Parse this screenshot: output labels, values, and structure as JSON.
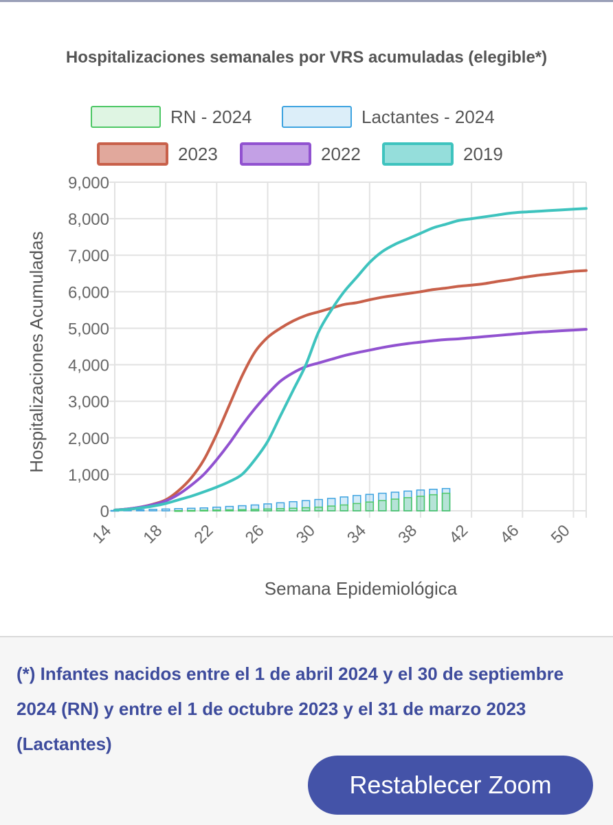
{
  "footnote": "(*) Infantes nacidos entre el 1 de abril 2024 y el 30 de septiembre 2024 (RN) y entre el 1 de octubre 2023 y el 31 de marzo 2023 (Lactantes)",
  "zoom_button_label": "Restablecer Zoom",
  "colors": {
    "rn_2024": "#4cc764",
    "lactantes_2024": "#3da3e0",
    "y2023": "#c8604a",
    "y2022": "#9152d0",
    "y2019": "#3ec3be",
    "footnote": "#3d4b9c",
    "button": "#4453a8"
  },
  "chart_data": {
    "type": "line",
    "title": "Hospitalizaciones semanales por VRS acumuladas (elegible*)",
    "xlabel": "Semana Epidemiológica",
    "ylabel": "Hospitalizaciones Acumuladas",
    "xlim": [
      14,
      51
    ],
    "ylim": [
      0,
      9000
    ],
    "x_ticks": [
      14,
      18,
      22,
      26,
      30,
      34,
      38,
      42,
      46,
      50
    ],
    "x_tick_labels": [
      "14",
      "18",
      "22",
      "26",
      "30",
      "34",
      "38",
      "42",
      "46",
      "50"
    ],
    "y_ticks": [
      0,
      1000,
      2000,
      3000,
      4000,
      5000,
      6000,
      7000,
      8000,
      9000
    ],
    "y_tick_labels": [
      "0",
      "1,000",
      "2,000",
      "3,000",
      "4,000",
      "5,000",
      "6,000",
      "7,000",
      "8,000",
      "9,000"
    ],
    "grid": true,
    "legend": [
      {
        "name": "RN - 2024",
        "key": "rn_2024"
      },
      {
        "name": "Lactantes - 2024",
        "key": "lactantes_2024"
      },
      {
        "name": "2023",
        "key": "y2023"
      },
      {
        "name": "2022",
        "key": "y2022"
      },
      {
        "name": "2019",
        "key": "y2019"
      }
    ],
    "bar_series": [
      {
        "name": "Lactantes - 2024",
        "key": "lactantes_2024",
        "x": [
          14,
          15,
          16,
          17,
          18,
          19,
          20,
          21,
          22,
          23,
          24,
          25,
          26,
          27,
          28,
          29,
          30,
          31,
          32,
          33,
          34,
          35,
          36,
          37,
          38,
          39,
          40
        ],
        "values": [
          10,
          20,
          30,
          40,
          50,
          60,
          70,
          80,
          100,
          120,
          140,
          160,
          190,
          220,
          250,
          280,
          310,
          340,
          380,
          420,
          450,
          480,
          510,
          540,
          570,
          590,
          610
        ]
      },
      {
        "name": "RN - 2024",
        "key": "rn_2024",
        "x": [
          14,
          15,
          16,
          17,
          18,
          19,
          20,
          21,
          22,
          23,
          24,
          25,
          26,
          27,
          28,
          29,
          30,
          31,
          32,
          33,
          34,
          35,
          36,
          37,
          38,
          39,
          40
        ],
        "values": [
          0,
          0,
          0,
          0,
          0,
          5,
          10,
          15,
          20,
          25,
          30,
          40,
          50,
          60,
          70,
          85,
          100,
          130,
          160,
          200,
          240,
          280,
          320,
          360,
          400,
          440,
          480
        ]
      }
    ],
    "series": [
      {
        "name": "2023",
        "key": "y2023",
        "x": [
          14,
          15,
          16,
          17,
          18,
          19,
          20,
          21,
          22,
          23,
          24,
          25,
          26,
          27,
          28,
          29,
          30,
          31,
          32,
          33,
          34,
          35,
          36,
          37,
          38,
          39,
          40,
          41,
          42,
          43,
          44,
          45,
          46,
          47,
          48,
          49,
          50,
          51
        ],
        "values": [
          20,
          50,
          100,
          180,
          300,
          550,
          900,
          1400,
          2100,
          2900,
          3700,
          4350,
          4750,
          5000,
          5200,
          5350,
          5450,
          5550,
          5650,
          5700,
          5780,
          5850,
          5900,
          5950,
          6000,
          6060,
          6100,
          6150,
          6180,
          6220,
          6280,
          6330,
          6390,
          6440,
          6480,
          6520,
          6560,
          6580
        ]
      },
      {
        "name": "2022",
        "key": "y2022",
        "x": [
          14,
          15,
          16,
          17,
          18,
          19,
          20,
          21,
          22,
          23,
          24,
          25,
          26,
          27,
          28,
          29,
          30,
          31,
          32,
          33,
          34,
          35,
          36,
          37,
          38,
          39,
          40,
          41,
          42,
          43,
          44,
          45,
          46,
          47,
          48,
          49,
          50,
          51
        ],
        "values": [
          20,
          50,
          100,
          170,
          270,
          450,
          700,
          1000,
          1400,
          1850,
          2350,
          2800,
          3200,
          3550,
          3780,
          3950,
          4050,
          4150,
          4250,
          4330,
          4400,
          4470,
          4530,
          4580,
          4620,
          4660,
          4690,
          4710,
          4740,
          4770,
          4800,
          4830,
          4860,
          4890,
          4910,
          4930,
          4950,
          4970
        ]
      },
      {
        "name": "2019",
        "key": "y2019",
        "x": [
          14,
          15,
          16,
          17,
          18,
          19,
          20,
          21,
          22,
          23,
          24,
          25,
          26,
          27,
          28,
          29,
          30,
          31,
          32,
          33,
          34,
          35,
          36,
          37,
          38,
          39,
          40,
          41,
          42,
          43,
          44,
          45,
          46,
          47,
          48,
          49,
          50,
          51
        ],
        "values": [
          20,
          40,
          80,
          130,
          200,
          300,
          400,
          520,
          650,
          800,
          1000,
          1400,
          1900,
          2600,
          3300,
          4000,
          4900,
          5500,
          6000,
          6400,
          6800,
          7100,
          7300,
          7450,
          7600,
          7750,
          7850,
          7950,
          8000,
          8050,
          8100,
          8150,
          8180,
          8200,
          8220,
          8240,
          8260,
          8280
        ]
      }
    ]
  }
}
